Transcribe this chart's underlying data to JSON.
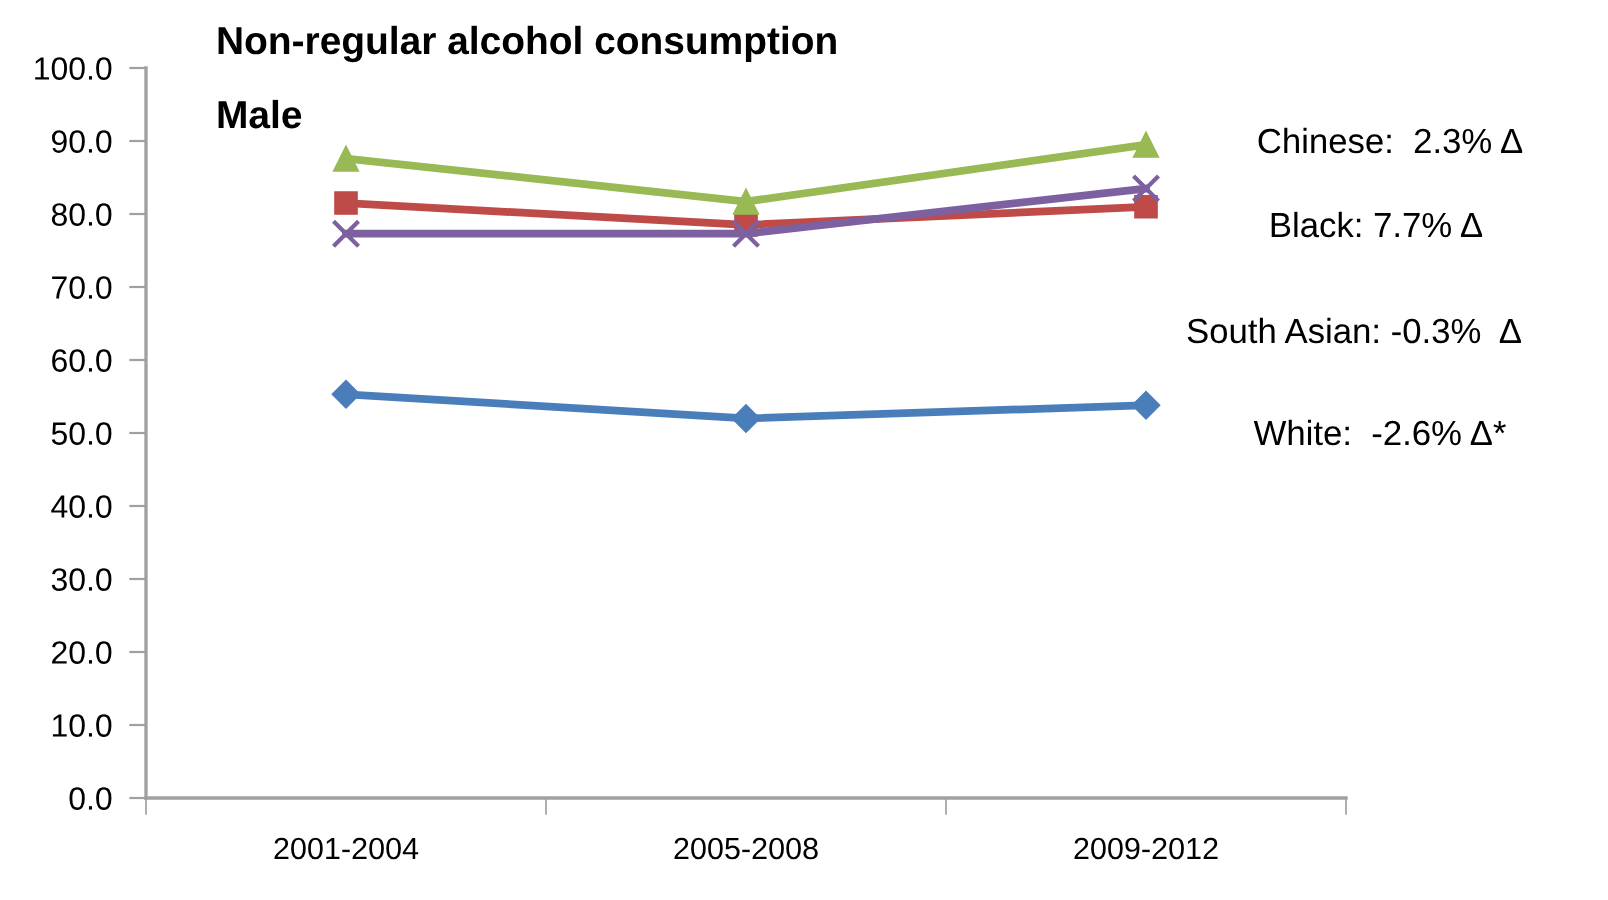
{
  "chart_data": {
    "type": "line",
    "title": "Non-regular alcohol consumption",
    "subtitle": "Male",
    "categories": [
      "2001-2004",
      "2005-2008",
      "2009-2012"
    ],
    "series": [
      {
        "color": "#4a7ebb",
        "marker": "diamond",
        "values": [
          55.3,
          52.0,
          53.8
        ]
      },
      {
        "color": "#be4b48",
        "marker": "square",
        "values": [
          81.5,
          78.5,
          81.0
        ]
      },
      {
        "color": "#98b954",
        "marker": "triangle",
        "values": [
          87.6,
          81.7,
          89.5
        ]
      },
      {
        "color": "#7d60a0",
        "marker": "cross",
        "values": [
          77.3,
          77.3,
          83.5
        ]
      }
    ],
    "ylim": [
      0,
      100
    ],
    "yticks": [
      {
        "value": 0,
        "label": "0.0"
      },
      {
        "value": 10,
        "label": "10.0"
      },
      {
        "value": 20,
        "label": "20.0"
      },
      {
        "value": 30,
        "label": "30.0"
      },
      {
        "value": 40,
        "label": "40.0"
      },
      {
        "value": 50,
        "label": "50.0"
      },
      {
        "value": 60,
        "label": "60.0"
      },
      {
        "value": 70,
        "label": "70.0"
      },
      {
        "value": 80,
        "label": "80.0"
      },
      {
        "value": 90,
        "label": "90.0"
      },
      {
        "value": 100,
        "label": "100.0"
      }
    ],
    "annotations": [
      "Chinese:  2.3% Δ",
      "Black: 7.7% Δ",
      "South Asian: -0.3%  Δ",
      "White:  -2.6% Δ*"
    ]
  }
}
